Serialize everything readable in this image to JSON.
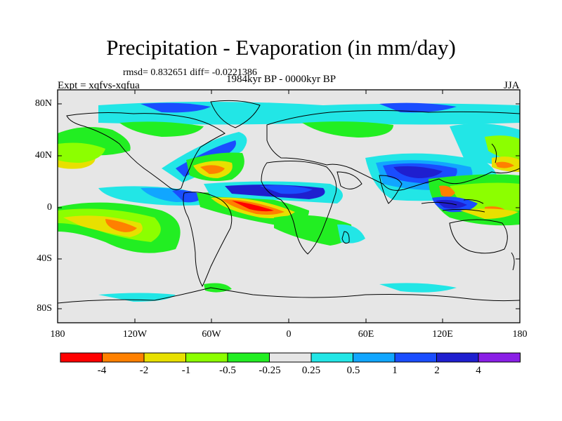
{
  "title": "Precipitation - Evaporation (in mm/day)",
  "stats": "rmsd= 0.832651 diff= -0.0221386",
  "experiment": "Expt = xqfvs-xqfua",
  "period": "1984kyr BP - 0000kyr BP",
  "season": "JJA",
  "lat_ticks": [
    "80N",
    "40N",
    "0",
    "40S",
    "80S"
  ],
  "lon_ticks": [
    "180",
    "120W",
    "60W",
    "0",
    "60E",
    "120E",
    "180"
  ],
  "colorbar": {
    "labels": [
      "-4",
      "-2",
      "-1",
      "-0.5",
      "-0.25",
      "0.25",
      "0.5",
      "1",
      "2",
      "4"
    ],
    "colors": [
      "#ff0000",
      "#ff8000",
      "#e8e000",
      "#8cff00",
      "#22ee22",
      "#e6e6e6",
      "#22e6e6",
      "#11a6ff",
      "#1a4dff",
      "#1f1fcf",
      "#8a1fe6"
    ]
  },
  "legend_colors": {
    "ocean_bg": "#e6e6e6",
    "strong_wet": "#1f1fcf",
    "strong_dry": "#ff0000"
  }
}
